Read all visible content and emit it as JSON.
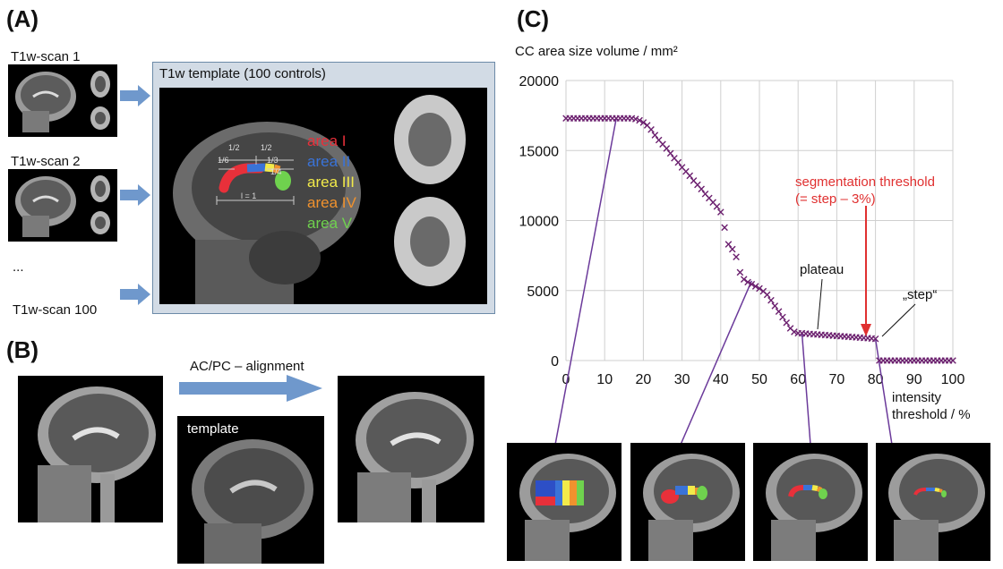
{
  "panels": {
    "a": "(A)",
    "b": "(B)",
    "c": "(C)"
  },
  "panel_a": {
    "scan_labels": [
      "T1w-scan 1",
      "T1w-scan 2",
      "...",
      "T1w-scan 100"
    ],
    "template_title": "T1w template (100 controls)",
    "areas": [
      {
        "label": "area I",
        "color": "#e8303a"
      },
      {
        "label": "area II",
        "color": "#3a73d8"
      },
      {
        "label": "area III",
        "color": "#f2ea4a"
      },
      {
        "label": "area IV",
        "color": "#f0922e"
      },
      {
        "label": "area V",
        "color": "#6fd24e"
      }
    ],
    "fractions": {
      "half_a": "1/2",
      "half_b": "1/2",
      "sixth": "1/6",
      "third": "1/3",
      "quarter": "1/4",
      "length": "l = 1"
    }
  },
  "panel_b": {
    "alignment_label": "AC/PC – alignment",
    "template_label": "template"
  },
  "chart_data": {
    "type": "scatter",
    "title": "",
    "ylabel": "CC area size volume / mm²",
    "xlabel": "intensity threshold / %",
    "xlim": [
      0,
      100
    ],
    "ylim": [
      0,
      20000
    ],
    "xticks": [
      0,
      10,
      20,
      30,
      40,
      50,
      60,
      70,
      80,
      90,
      100
    ],
    "yticks": [
      0,
      5000,
      10000,
      15000,
      20000
    ],
    "grid": true,
    "marker": "x",
    "marker_color": "#6b1f6e",
    "x": [
      0,
      1,
      2,
      3,
      4,
      5,
      6,
      7,
      8,
      9,
      10,
      11,
      12,
      13,
      14,
      15,
      16,
      17,
      18,
      19,
      20,
      21,
      22,
      23,
      24,
      25,
      26,
      27,
      28,
      29,
      30,
      31,
      32,
      33,
      34,
      35,
      36,
      37,
      38,
      39,
      40,
      41,
      42,
      43,
      44,
      45,
      46,
      47,
      48,
      49,
      50,
      51,
      52,
      53,
      54,
      55,
      56,
      57,
      58,
      59,
      60,
      61,
      62,
      63,
      64,
      65,
      66,
      67,
      68,
      69,
      70,
      71,
      72,
      73,
      74,
      75,
      76,
      77,
      78,
      79,
      80,
      81,
      82,
      83,
      84,
      85,
      86,
      87,
      88,
      89,
      90,
      91,
      92,
      93,
      94,
      95,
      96,
      97,
      98,
      99,
      100
    ],
    "y": [
      17300,
      17300,
      17300,
      17300,
      17300,
      17300,
      17300,
      17300,
      17300,
      17300,
      17300,
      17300,
      17300,
      17300,
      17300,
      17300,
      17300,
      17300,
      17250,
      17150,
      17000,
      16800,
      16500,
      16100,
      15750,
      15450,
      15150,
      14800,
      14450,
      14150,
      13800,
      13500,
      13200,
      12850,
      12550,
      12250,
      11900,
      11600,
      11300,
      11000,
      10600,
      9500,
      8300,
      7950,
      7400,
      6300,
      5800,
      5600,
      5450,
      5300,
      5150,
      4950,
      4700,
      4300,
      3900,
      3500,
      3100,
      2700,
      2300,
      2050,
      1950,
      1950,
      1920,
      1900,
      1880,
      1860,
      1840,
      1820,
      1800,
      1780,
      1760,
      1740,
      1720,
      1700,
      1680,
      1660,
      1640,
      1620,
      1600,
      1580,
      1550,
      0,
      0,
      0,
      0,
      0,
      0,
      0,
      0,
      0,
      0,
      0,
      0,
      0,
      0,
      0,
      0,
      0,
      0,
      0,
      0
    ],
    "annotations": {
      "segmentation_threshold": "segmentation threshold",
      "segmentation_threshold_note": "(= step – 3%)",
      "plateau": "plateau",
      "step": "„step“"
    },
    "annotation_color": "#e03030",
    "line_color": "#6b3a9a"
  }
}
